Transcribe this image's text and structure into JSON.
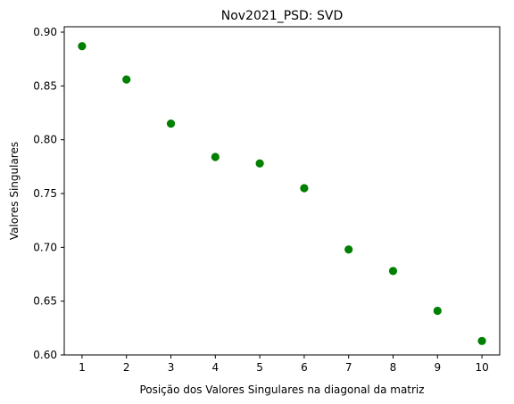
{
  "chart_data": {
    "type": "scatter",
    "title": "Nov2021_PSD: SVD",
    "xlabel": "Posição dos Valores Singulares na diagonal da matriz",
    "ylabel": "Valores Singulares",
    "x": [
      1,
      2,
      3,
      4,
      5,
      6,
      7,
      8,
      9,
      10
    ],
    "series": [
      {
        "values": [
          0.887,
          0.856,
          0.815,
          0.784,
          0.778,
          0.755,
          0.698,
          0.678,
          0.641,
          0.613
        ]
      }
    ],
    "xlim": [
      0.6,
      10.4
    ],
    "ylim": [
      0.6,
      0.905
    ],
    "xticks": [
      "1",
      "2",
      "3",
      "4",
      "5",
      "6",
      "7",
      "8",
      "9",
      "10"
    ],
    "yticks": [
      "0.60",
      "0.65",
      "0.70",
      "0.75",
      "0.80",
      "0.85",
      "0.90"
    ],
    "grid": false,
    "marker_color": "#008000"
  }
}
